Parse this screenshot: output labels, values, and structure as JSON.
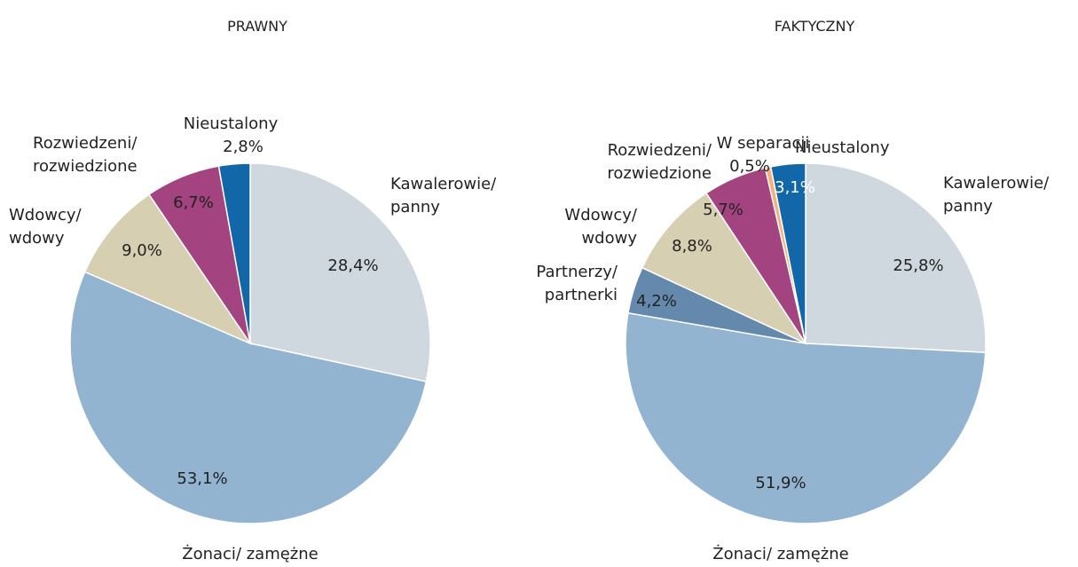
{
  "chart_data": [
    {
      "type": "pie",
      "title": "PRAWNY",
      "categories": [
        "Kawalerowie/\npanny",
        "Żonaci/ zamężne",
        "Wdowcy/\nwdowy",
        "Rozwiedzeni/\nrozwiedzione",
        "Nieustalony"
      ],
      "values": [
        28.4,
        53.1,
        9.0,
        6.7,
        2.8
      ],
      "value_labels": [
        "28,4%",
        "53,1%",
        "9,0%",
        "6,7%",
        "2,8%"
      ],
      "colors": [
        "#cfd8de",
        "#93b4d0",
        "#d6cfb2",
        "#a3437f",
        "#1267a8"
      ]
    },
    {
      "type": "pie",
      "title": "FAKTYCZNY",
      "categories": [
        "Kawalerowie/\npanny",
        "Żonaci/ zamężne",
        "Partnerzy/\npartnerki",
        "Wdowcy/\nwdowy",
        "Rozwiedzeni/\nrozwiedzione",
        "W separacji",
        "Nieustalony"
      ],
      "values": [
        25.8,
        51.9,
        4.2,
        8.8,
        5.7,
        0.5,
        3.1
      ],
      "value_labels": [
        "25,8%",
        "51,9%",
        "4,2%",
        "8,8%",
        "5,7%",
        "0,5%",
        "3,1%"
      ],
      "colors": [
        "#cfd8de",
        "#93b4d0",
        "#6489ad",
        "#d6cfb2",
        "#a3437f",
        "#f2b27a",
        "#1267a8"
      ]
    }
  ]
}
